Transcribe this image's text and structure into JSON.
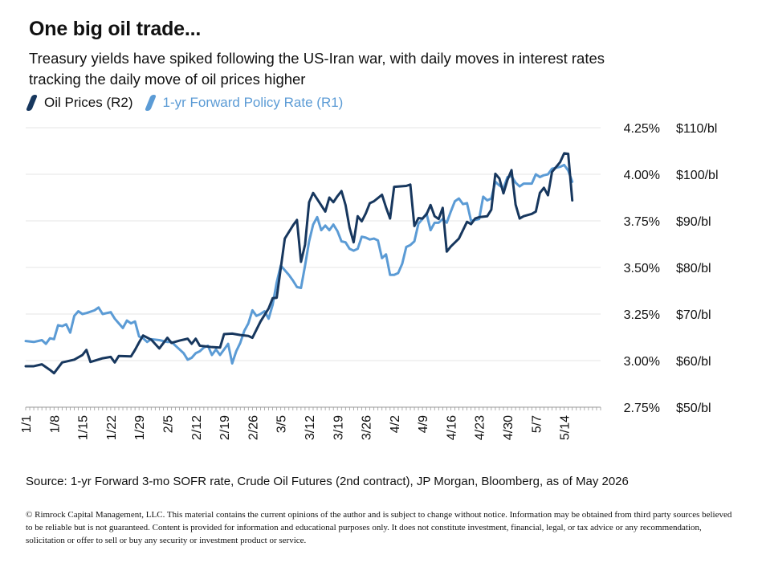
{
  "header": {
    "title": "One big oil trade...",
    "subtitle": "Treasury yields have spiked following the US-Iran war, with daily moves in interest rates tracking the daily move of oil prices higher"
  },
  "footer": {
    "source": "Source:  1-yr Forward 3-mo SOFR rate, Crude Oil Futures (2nd contract), JP Morgan, Bloomberg, as of May 2026",
    "disclaimer": "© Rimrock Capital Management, LLC.  This material contains the current opinions of the author and is subject to change without notice.  Information may be obtained from third party sources believed to be reliable but is not guaranteed.  Content is provided for information and educational purposes only. It does not constitute investment, financial, legal, or tax advice or any recommendation, solicitation or offer to sell or buy any security or investment product or service."
  },
  "colors": {
    "oil": "#17375e",
    "policy": "#5b9bd5",
    "grid": "#e6e6e6",
    "axis": "#9a9a9a"
  },
  "chart_data": {
    "type": "line",
    "grid": "horizontal",
    "legend_position": "top-left",
    "x_range": [
      0,
      142
    ],
    "x_ticks": [
      {
        "x": 0,
        "label": "1/1"
      },
      {
        "x": 7,
        "label": "1/8"
      },
      {
        "x": 14,
        "label": "1/15"
      },
      {
        "x": 21,
        "label": "1/22"
      },
      {
        "x": 28,
        "label": "1/29"
      },
      {
        "x": 35,
        "label": "2/5"
      },
      {
        "x": 42,
        "label": "2/12"
      },
      {
        "x": 49,
        "label": "2/19"
      },
      {
        "x": 56,
        "label": "2/26"
      },
      {
        "x": 63,
        "label": "3/5"
      },
      {
        "x": 70,
        "label": "3/12"
      },
      {
        "x": 77,
        "label": "3/19"
      },
      {
        "x": 84,
        "label": "3/26"
      },
      {
        "x": 91,
        "label": "4/2"
      },
      {
        "x": 98,
        "label": "4/9"
      },
      {
        "x": 105,
        "label": "4/16"
      },
      {
        "x": 112,
        "label": "4/23"
      },
      {
        "x": 119,
        "label": "4/30"
      },
      {
        "x": 126,
        "label": "5/7"
      },
      {
        "x": 133,
        "label": "5/14"
      }
    ],
    "y_left": {
      "range": [
        2.75,
        4.25
      ],
      "ticks": [
        2.75,
        3.0,
        3.25,
        3.5,
        3.75,
        4.0,
        4.25
      ],
      "tick_labels": [
        "2.75%",
        "3.00%",
        "3.25%",
        "3.50%",
        "3.75%",
        "4.00%",
        "4.25%"
      ]
    },
    "y_right": {
      "range": [
        50,
        110
      ],
      "ticks": [
        50,
        60,
        70,
        80,
        90,
        100,
        110
      ],
      "tick_labels": [
        "$50/bl",
        "$60/bl",
        "$70/bl",
        "$80/bl",
        "$90/bl",
        "$100/bl",
        "$110/bl"
      ]
    },
    "series": [
      {
        "name": "Oil Prices (R2)",
        "axis": "right",
        "color": "#17375e",
        "points": [
          [
            0,
            58.8
          ],
          [
            2,
            58.8
          ],
          [
            4,
            59.2
          ],
          [
            6,
            58.0
          ],
          [
            7,
            57.3
          ],
          [
            9,
            59.6
          ],
          [
            12,
            60.2
          ],
          [
            14,
            61.2
          ],
          [
            15,
            62.3
          ],
          [
            16,
            59.7
          ],
          [
            19,
            60.5
          ],
          [
            21,
            60.8
          ],
          [
            22,
            59.6
          ],
          [
            23,
            61.0
          ],
          [
            26,
            60.9
          ],
          [
            27,
            62.3
          ],
          [
            28,
            63.9
          ],
          [
            29,
            65.4
          ],
          [
            31,
            64.5
          ],
          [
            33,
            62.6
          ],
          [
            35,
            64.9
          ],
          [
            36,
            63.8
          ],
          [
            38,
            64.3
          ],
          [
            40,
            64.7
          ],
          [
            41,
            63.6
          ],
          [
            42,
            64.7
          ],
          [
            43,
            63.2
          ],
          [
            46,
            62.9
          ],
          [
            48,
            62.8
          ],
          [
            49,
            65.7
          ],
          [
            51,
            65.8
          ],
          [
            53,
            65.5
          ],
          [
            55,
            65.3
          ],
          [
            56,
            64.9
          ],
          [
            58,
            68.4
          ],
          [
            60,
            71.2
          ],
          [
            61,
            73.4
          ],
          [
            62,
            73.5
          ],
          [
            64,
            86.2
          ],
          [
            66,
            89.0
          ],
          [
            67,
            90.2
          ],
          [
            68,
            81.2
          ],
          [
            69,
            84.9
          ],
          [
            70,
            94.0
          ],
          [
            71,
            96.0
          ],
          [
            74,
            92.0
          ],
          [
            75,
            95.0
          ],
          [
            76,
            94.0
          ],
          [
            77,
            95.3
          ],
          [
            78,
            96.4
          ],
          [
            79,
            93.4
          ],
          [
            80,
            88.5
          ],
          [
            81,
            85.4
          ],
          [
            82,
            91.0
          ],
          [
            83,
            89.9
          ],
          [
            84,
            91.6
          ],
          [
            85,
            93.8
          ],
          [
            86,
            94.2
          ],
          [
            88,
            95.6
          ],
          [
            89,
            92.9
          ],
          [
            90,
            90.5
          ],
          [
            91,
            97.3
          ],
          [
            94,
            97.5
          ],
          [
            95,
            97.8
          ],
          [
            96,
            88.9
          ],
          [
            97,
            90.6
          ],
          [
            98,
            90.5
          ],
          [
            99,
            91.4
          ],
          [
            100,
            93.4
          ],
          [
            101,
            91.0
          ],
          [
            102,
            90.4
          ],
          [
            103,
            92.8
          ],
          [
            104,
            83.4
          ],
          [
            105,
            84.5
          ],
          [
            107,
            86.2
          ],
          [
            109,
            89.8
          ],
          [
            110,
            89.3
          ],
          [
            111,
            90.5
          ],
          [
            112,
            90.8
          ],
          [
            114,
            91.0
          ],
          [
            115,
            92.4
          ],
          [
            116,
            100.1
          ],
          [
            117,
            99.1
          ],
          [
            118,
            95.9
          ],
          [
            119,
            98.8
          ],
          [
            120,
            100.9
          ],
          [
            121,
            93.5
          ],
          [
            122,
            90.5
          ],
          [
            123,
            91.0
          ],
          [
            125,
            91.5
          ],
          [
            126,
            92.0
          ],
          [
            127,
            96.0
          ],
          [
            128,
            97.1
          ],
          [
            129,
            95.5
          ],
          [
            130,
            100.5
          ],
          [
            132,
            102.6
          ],
          [
            133,
            104.5
          ],
          [
            134,
            104.4
          ],
          [
            135,
            94.4
          ]
        ]
      },
      {
        "name": "1-yr Forward Policy Rate (R1)",
        "axis": "left",
        "color": "#5b9bd5",
        "points": [
          [
            0,
            3.105
          ],
          [
            2,
            3.1
          ],
          [
            4,
            3.11
          ],
          [
            5,
            3.09
          ],
          [
            6,
            3.12
          ],
          [
            7,
            3.115
          ],
          [
            8,
            3.19
          ],
          [
            9,
            3.185
          ],
          [
            10,
            3.195
          ],
          [
            11,
            3.15
          ],
          [
            12,
            3.24
          ],
          [
            13,
            3.265
          ],
          [
            14,
            3.25
          ],
          [
            15,
            3.255
          ],
          [
            17,
            3.27
          ],
          [
            18,
            3.285
          ],
          [
            19,
            3.25
          ],
          [
            21,
            3.26
          ],
          [
            22,
            3.225
          ],
          [
            23,
            3.2
          ],
          [
            24,
            3.175
          ],
          [
            25,
            3.215
          ],
          [
            26,
            3.2
          ],
          [
            27,
            3.21
          ],
          [
            28,
            3.13
          ],
          [
            29,
            3.12
          ],
          [
            30,
            3.1
          ],
          [
            31,
            3.115
          ],
          [
            33,
            3.11
          ],
          [
            35,
            3.1
          ],
          [
            36,
            3.1
          ],
          [
            38,
            3.06
          ],
          [
            39,
            3.04
          ],
          [
            40,
            3.005
          ],
          [
            41,
            3.015
          ],
          [
            42,
            3.04
          ],
          [
            43,
            3.05
          ],
          [
            44,
            3.07
          ],
          [
            45,
            3.08
          ],
          [
            46,
            3.03
          ],
          [
            47,
            3.06
          ],
          [
            48,
            3.03
          ],
          [
            49,
            3.06
          ],
          [
            50,
            3.09
          ],
          [
            51,
            2.985
          ],
          [
            52,
            3.05
          ],
          [
            53,
            3.095
          ],
          [
            54,
            3.16
          ],
          [
            55,
            3.2
          ],
          [
            56,
            3.27
          ],
          [
            57,
            3.24
          ],
          [
            58,
            3.25
          ],
          [
            59,
            3.265
          ],
          [
            60,
            3.225
          ],
          [
            61,
            3.3
          ],
          [
            62,
            3.42
          ],
          [
            63,
            3.51
          ],
          [
            65,
            3.46
          ],
          [
            66,
            3.43
          ],
          [
            67,
            3.395
          ],
          [
            68,
            3.39
          ],
          [
            69,
            3.51
          ],
          [
            70,
            3.64
          ],
          [
            71,
            3.73
          ],
          [
            72,
            3.77
          ],
          [
            73,
            3.7
          ],
          [
            74,
            3.725
          ],
          [
            75,
            3.7
          ],
          [
            76,
            3.73
          ],
          [
            77,
            3.695
          ],
          [
            78,
            3.64
          ],
          [
            79,
            3.635
          ],
          [
            80,
            3.6
          ],
          [
            81,
            3.59
          ],
          [
            82,
            3.6
          ],
          [
            83,
            3.665
          ],
          [
            84,
            3.66
          ],
          [
            85,
            3.65
          ],
          [
            86,
            3.655
          ],
          [
            87,
            3.645
          ],
          [
            88,
            3.55
          ],
          [
            89,
            3.57
          ],
          [
            90,
            3.46
          ],
          [
            91,
            3.46
          ],
          [
            92,
            3.47
          ],
          [
            93,
            3.52
          ],
          [
            94,
            3.61
          ],
          [
            95,
            3.62
          ],
          [
            96,
            3.64
          ],
          [
            97,
            3.735
          ],
          [
            98,
            3.76
          ],
          [
            99,
            3.79
          ],
          [
            100,
            3.7
          ],
          [
            101,
            3.74
          ],
          [
            102,
            3.74
          ],
          [
            103,
            3.76
          ],
          [
            104,
            3.74
          ],
          [
            105,
            3.8
          ],
          [
            106,
            3.855
          ],
          [
            107,
            3.87
          ],
          [
            108,
            3.84
          ],
          [
            109,
            3.845
          ],
          [
            110,
            3.75
          ],
          [
            112,
            3.76
          ],
          [
            113,
            3.88
          ],
          [
            114,
            3.86
          ],
          [
            115,
            3.87
          ],
          [
            116,
            3.96
          ],
          [
            117,
            3.94
          ],
          [
            118,
            3.925
          ],
          [
            119,
            3.985
          ],
          [
            120,
            3.99
          ],
          [
            121,
            3.955
          ],
          [
            122,
            3.935
          ],
          [
            123,
            3.95
          ],
          [
            125,
            3.95
          ],
          [
            126,
            4.0
          ],
          [
            127,
            3.985
          ],
          [
            128,
            3.995
          ],
          [
            129,
            4.0
          ],
          [
            130,
            4.03
          ],
          [
            132,
            4.04
          ],
          [
            133,
            4.05
          ],
          [
            134,
            4.02
          ],
          [
            135,
            3.96
          ]
        ]
      }
    ]
  }
}
